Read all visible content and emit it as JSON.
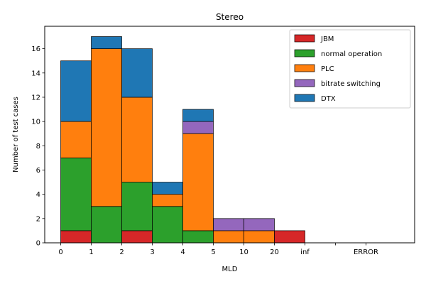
{
  "chart_data": {
    "type": "bar",
    "stacked": true,
    "title": "Stereo",
    "xlabel": "MLD",
    "ylabel": "Number of test cases",
    "categories": [
      "0-1",
      "1-2",
      "2-3",
      "3-4",
      "4-5",
      "5-10",
      "10-20",
      "20-inf",
      "inf-",
      "-ERROR",
      "ERROR"
    ],
    "x_tick_labels": [
      "0",
      "1",
      "2",
      "3",
      "4",
      "5",
      "10",
      "20",
      "inf",
      "",
      "ERROR"
    ],
    "ylim": [
      0,
      17.85
    ],
    "y_ticks": [
      0,
      2,
      4,
      6,
      8,
      10,
      12,
      14,
      16
    ],
    "series": [
      {
        "name": "JBM",
        "color": "#d62728",
        "values": [
          1,
          0,
          1,
          0,
          0,
          0,
          0,
          1,
          0,
          0,
          0
        ]
      },
      {
        "name": "normal operation",
        "color": "#2ca02c",
        "values": [
          6,
          3,
          4,
          3,
          1,
          0,
          0,
          0,
          0,
          0,
          0
        ]
      },
      {
        "name": "PLC",
        "color": "#ff7f0e",
        "values": [
          3,
          13,
          7,
          1,
          8,
          1,
          1,
          0,
          0,
          0,
          0
        ]
      },
      {
        "name": "bitrate switching",
        "color": "#9467bd",
        "values": [
          0,
          0,
          0,
          0,
          1,
          1,
          1,
          0,
          0,
          0,
          0
        ]
      },
      {
        "name": "DTX",
        "color": "#1f77b4",
        "values": [
          5,
          1,
          4,
          1,
          1,
          0,
          0,
          0,
          0,
          0,
          0
        ]
      }
    ],
    "legend_position": "top-right",
    "grid": false
  }
}
